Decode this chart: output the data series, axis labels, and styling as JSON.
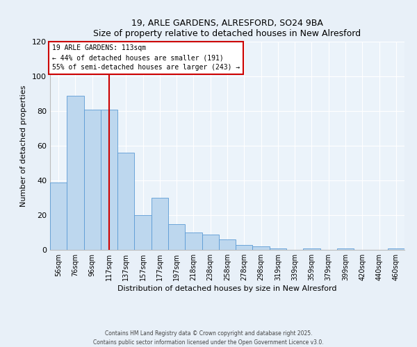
{
  "title1": "19, ARLE GARDENS, ALRESFORD, SO24 9BA",
  "title2": "Size of property relative to detached houses in New Alresford",
  "xlabel": "Distribution of detached houses by size in New Alresford",
  "ylabel": "Number of detached properties",
  "bar_labels": [
    "56sqm",
    "76sqm",
    "96sqm",
    "117sqm",
    "137sqm",
    "157sqm",
    "177sqm",
    "197sqm",
    "218sqm",
    "238sqm",
    "258sqm",
    "278sqm",
    "298sqm",
    "319sqm",
    "339sqm",
    "359sqm",
    "379sqm",
    "399sqm",
    "420sqm",
    "440sqm",
    "460sqm"
  ],
  "bar_heights": [
    39,
    89,
    81,
    81,
    56,
    20,
    30,
    15,
    10,
    9,
    6,
    3,
    2,
    1,
    0,
    1,
    0,
    1,
    0,
    0,
    1
  ],
  "bar_color": "#BDD7EE",
  "bar_edge_color": "#5B9BD5",
  "bar_width": 1.0,
  "vline_x": 3,
  "vline_color": "#CC0000",
  "annotation_title": "19 ARLE GARDENS: 113sqm",
  "annotation_line2": "← 44% of detached houses are smaller (191)",
  "annotation_line3": "55% of semi-detached houses are larger (243) →",
  "annotation_box_color": "#CC0000",
  "annotation_box_fill": "#FFFFFF",
  "ylim": [
    0,
    120
  ],
  "yticks": [
    0,
    20,
    40,
    60,
    80,
    100,
    120
  ],
  "background_color": "#E8F0F8",
  "plot_bg_color": "#EBF3FA",
  "footer1": "Contains HM Land Registry data © Crown copyright and database right 2025.",
  "footer2": "Contains public sector information licensed under the Open Government Licence v3.0."
}
